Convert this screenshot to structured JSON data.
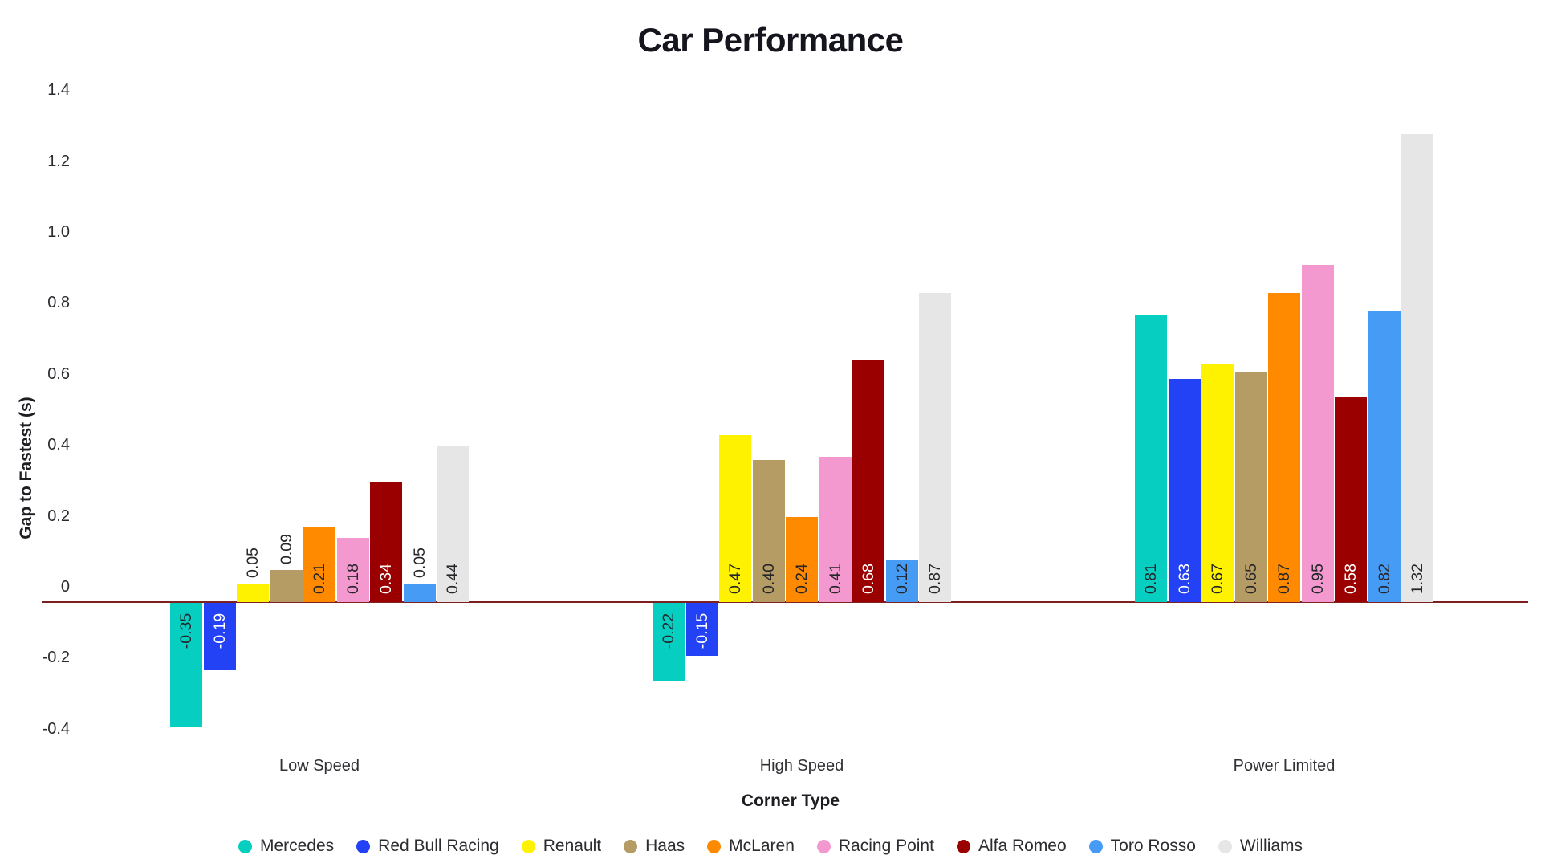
{
  "title": "Car Performance",
  "chart_data": {
    "type": "bar",
    "title": "Car Performance",
    "xlabel": "Corner Type",
    "ylabel": "Gap to Fastest (s)",
    "categories": [
      "Low Speed",
      "High Speed",
      "Power Limited"
    ],
    "series": [
      {
        "name": "Mercedes",
        "color": "#06CEC0",
        "label_color": "#26262a",
        "values": [
          -0.35,
          -0.22,
          0.81
        ]
      },
      {
        "name": "Red Bull Racing",
        "color": "#2442F5",
        "label_color": "#ffffff",
        "values": [
          -0.19,
          -0.15,
          0.63
        ]
      },
      {
        "name": "Renault",
        "color": "#FFF200",
        "label_color": "#26262a",
        "values": [
          0.05,
          0.47,
          0.67
        ]
      },
      {
        "name": "Haas",
        "color": "#B59B64",
        "label_color": "#26262a",
        "values": [
          0.09,
          0.4,
          0.65
        ]
      },
      {
        "name": "McLaren",
        "color": "#FF8A00",
        "label_color": "#26262a",
        "values": [
          0.21,
          0.24,
          0.87
        ]
      },
      {
        "name": "Racing Point",
        "color": "#F499CF",
        "label_color": "#26262a",
        "values": [
          0.18,
          0.41,
          0.95
        ]
      },
      {
        "name": "Alfa Romeo",
        "color": "#9B0000",
        "label_color": "#ffffff",
        "values": [
          0.34,
          0.68,
          0.58
        ]
      },
      {
        "name": "Toro Rosso",
        "color": "#469BF5",
        "label_color": "#26262a",
        "values": [
          0.05,
          0.12,
          0.82
        ]
      },
      {
        "name": "Williams",
        "color": "#E6E6E6",
        "label_color": "#26262a",
        "values": [
          0.44,
          0.87,
          1.32
        ]
      }
    ],
    "y_ticks": [
      "1.4",
      "1.2",
      "1.0",
      "0.8",
      "0.6",
      "0.4",
      "0.2",
      "0",
      "-0.2",
      "-0.4"
    ],
    "ylim": [
      -0.45,
      1.45
    ],
    "grid": false,
    "legend_position": "bottom",
    "value_labels": true,
    "baseline_color": "#7E2020",
    "background_color": "#ffffff"
  }
}
